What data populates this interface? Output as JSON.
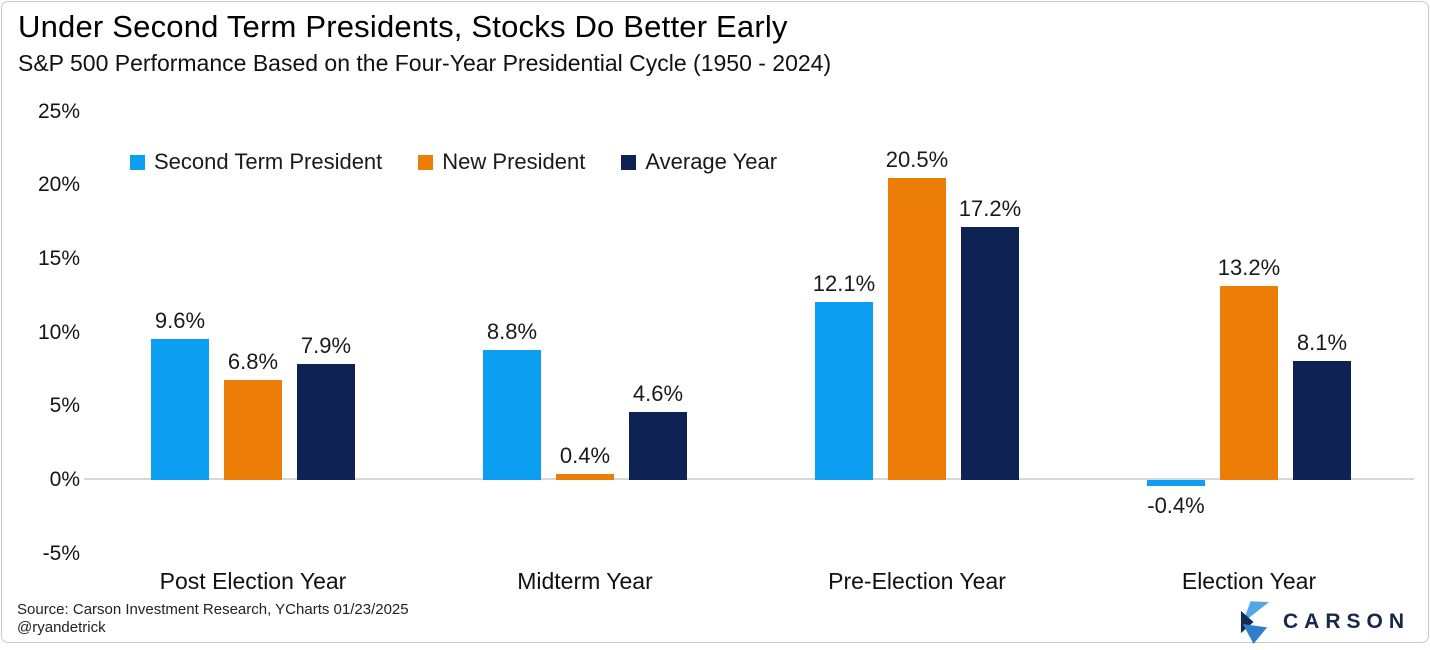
{
  "header": {
    "title": "Under Second Term Presidents, Stocks Do Better Early",
    "subtitle": "S&P 500 Performance Based on the Four-Year Presidential Cycle (1950 - 2024)"
  },
  "chart_data": {
    "type": "bar",
    "title": "Under Second Term Presidents, Stocks Do Better Early",
    "subtitle": "S&P 500 Performance Based on the Four-Year Presidential Cycle (1950 - 2024)",
    "categories": [
      "Post Election Year",
      "Midterm Year",
      "Pre-Election Year",
      "Election Year"
    ],
    "series": [
      {
        "name": "Second Term President",
        "color": "#0c9ef0",
        "values": [
          9.6,
          8.8,
          12.1,
          -0.4
        ]
      },
      {
        "name": "New President",
        "color": "#ec7e08",
        "values": [
          6.8,
          0.4,
          20.5,
          13.2
        ]
      },
      {
        "name": "Average Year",
        "color": "#0f2254",
        "values": [
          7.9,
          4.6,
          17.2,
          8.1
        ]
      }
    ],
    "value_suffix": "%",
    "ylim": [
      -5,
      25
    ],
    "yticks": [
      25,
      20,
      15,
      10,
      5,
      0,
      -5
    ],
    "ytick_suffix": "%",
    "grid": false,
    "legend_position": "top-left",
    "xlabel": "",
    "ylabel": ""
  },
  "footer": {
    "source_line1": "Source: Carson Investment Research, YCharts 01/23/2025",
    "source_line2": "@ryandetrick",
    "brand": "CARSON"
  },
  "colors": {
    "second_term_blue": "#0c9ef0",
    "new_president_orange": "#ec7e08",
    "average_year_navy": "#0f2254",
    "axis_line": "#d8d8d8",
    "logo_navy": "#16294c",
    "logo_light_blue": "#55a6e6",
    "logo_mid_blue": "#2e7fce"
  }
}
